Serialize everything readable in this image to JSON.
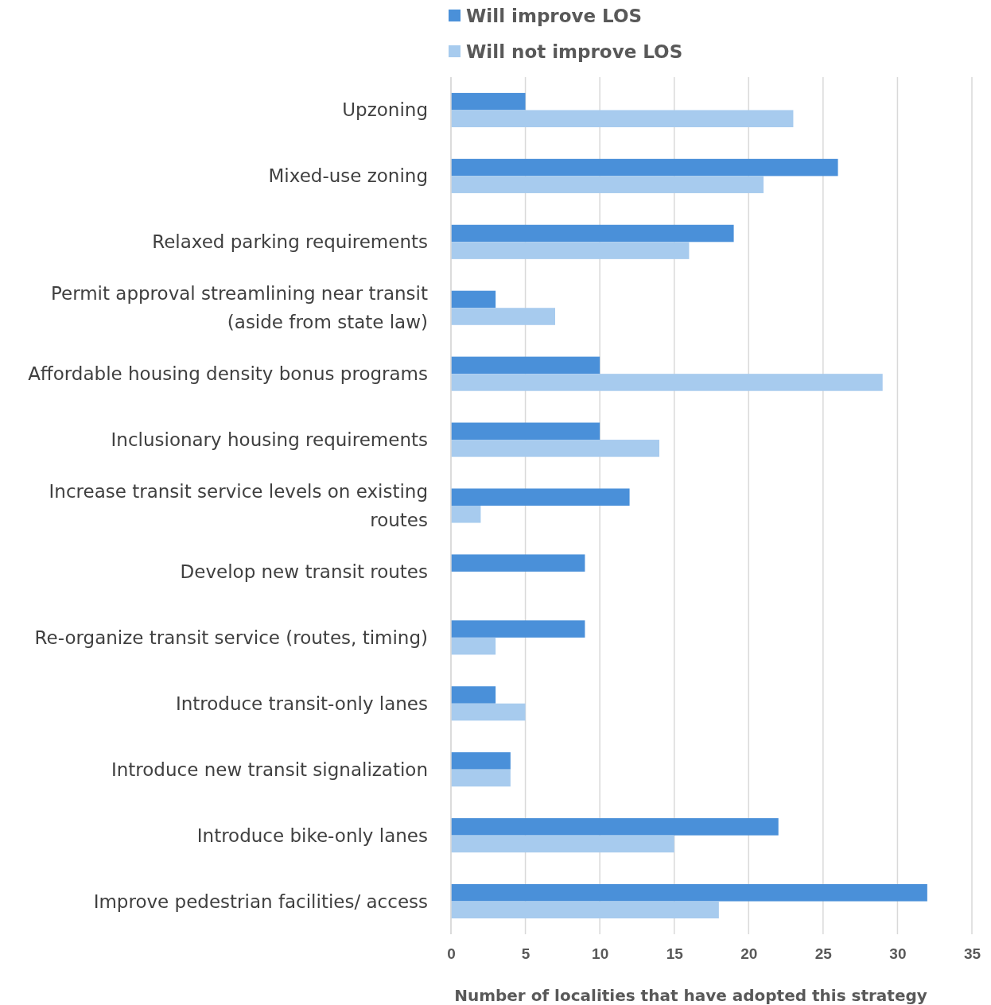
{
  "chart_data": {
    "type": "bar",
    "orientation": "horizontal",
    "xlabel": "Number of localities that have adopted this strategy",
    "categories": [
      "Upzoning",
      "Mixed-use zoning",
      "Relaxed parking requirements",
      "Permit approval streamlining near transit (aside from state law)",
      "Affordable housing density bonus programs",
      "Inclusionary housing requirements",
      "Increase transit service levels on existing routes",
      "Develop new transit routes",
      "Re-organize transit service (routes, timing)",
      "Introduce transit-only lanes",
      "Introduce new transit signalization",
      "Introduce bike-only lanes",
      "Improve pedestrian facilities/ access"
    ],
    "series": [
      {
        "name": "Will improve LOS",
        "color": "#4a90d9",
        "values": [
          5,
          26,
          19,
          3,
          10,
          10,
          12,
          9,
          9,
          3,
          4,
          22,
          32
        ]
      },
      {
        "name": "Will not improve LOS",
        "color": "#a7cbee",
        "values": [
          23,
          21,
          16,
          7,
          29,
          14,
          2,
          0,
          3,
          5,
          4,
          15,
          18
        ]
      }
    ],
    "xlim": [
      0,
      35
    ],
    "xticks": [
      0,
      5,
      10,
      15,
      20,
      25,
      30,
      35
    ],
    "grid": "x",
    "legend": "top"
  }
}
